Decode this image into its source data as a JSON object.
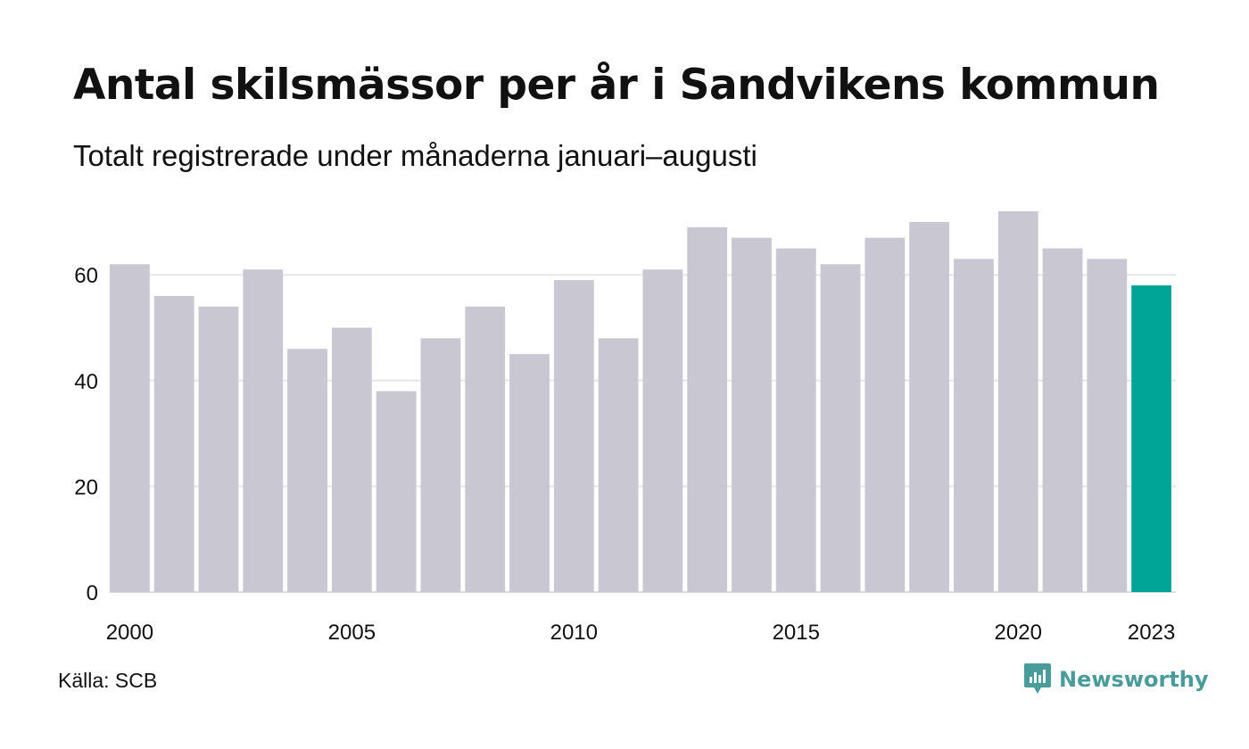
{
  "header": {
    "title": "Antal skilsmässor per år i Sandvikens kommun",
    "subtitle": "Totalt registrerade under månaderna januari–augusti"
  },
  "footer": {
    "source": "Källa: SCB",
    "brand": "Newsworthy",
    "brand_icon": "newsworthy-logo-icon",
    "brand_color": "#4a9b9b"
  },
  "chart_data": {
    "type": "bar",
    "categories": [
      "2000",
      "2001",
      "2002",
      "2003",
      "2004",
      "2005",
      "2006",
      "2007",
      "2008",
      "2009",
      "2010",
      "2011",
      "2012",
      "2013",
      "2014",
      "2015",
      "2016",
      "2017",
      "2018",
      "2019",
      "2020",
      "2021",
      "2022",
      "2023"
    ],
    "values": [
      62,
      56,
      54,
      61,
      46,
      50,
      38,
      48,
      54,
      45,
      59,
      48,
      61,
      69,
      67,
      65,
      62,
      67,
      70,
      63,
      72,
      65,
      63,
      58
    ],
    "x_tick_labels": [
      "2000",
      "2005",
      "2010",
      "2015",
      "2020",
      "2023"
    ],
    "y_ticks": [
      0,
      20,
      40,
      60
    ],
    "ylim": [
      0,
      72
    ],
    "grid": true,
    "colors": {
      "default": "#c8c7d2",
      "highlight": "#00a598",
      "grid": "#e6e6e6"
    },
    "highlight": "2023",
    "xlabel": "",
    "ylabel": ""
  }
}
